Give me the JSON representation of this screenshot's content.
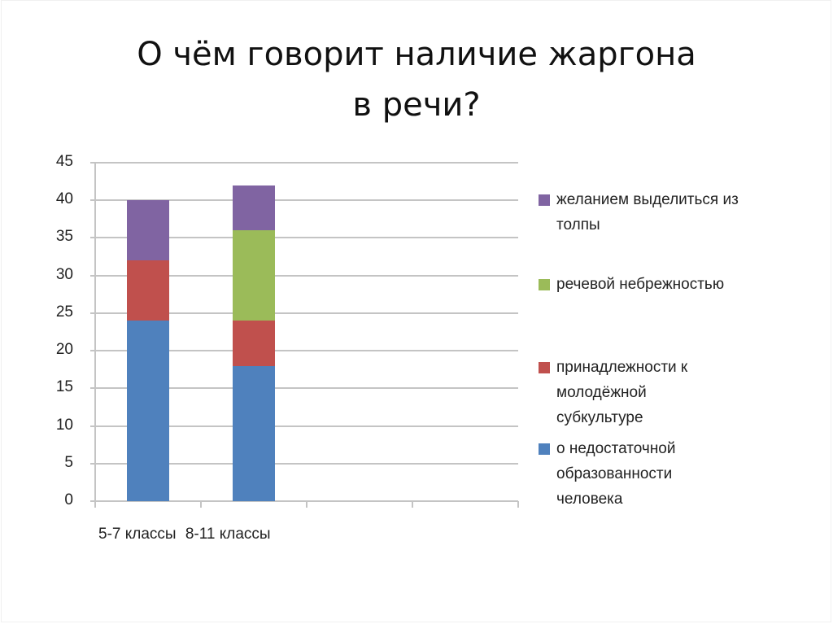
{
  "slide": {
    "title_lines": [
      "О чём говорит наличие жаргона",
      "в речи?"
    ]
  },
  "chart_data": {
    "type": "bar",
    "stacked": true,
    "title": "О чём говорит наличие жаргона в речи?",
    "xlabel": "",
    "ylabel": "",
    "ylim": [
      0,
      45
    ],
    "yticks": [
      0,
      5,
      10,
      15,
      20,
      25,
      30,
      35,
      40,
      45
    ],
    "grid": true,
    "legend_position": "right",
    "categories": [
      "5-7 классы",
      "8-11 классы"
    ],
    "x_label_text": "5-7 классы 8-11 классы",
    "series": [
      {
        "name": "о недостаточной образованности человека",
        "color": "#4f81bd",
        "values": [
          24,
          18
        ]
      },
      {
        "name": "принадлежности к молодёжной субкультуре",
        "color": "#c0504d",
        "values": [
          8,
          6
        ]
      },
      {
        "name": "речевой небрежностью",
        "color": "#9bbb59",
        "values": [
          0,
          12
        ]
      },
      {
        "name": "желанием выделиться из толпы",
        "color": "#8064a2",
        "values": [
          8,
          6
        ]
      }
    ]
  },
  "legend": {
    "items": [
      {
        "lines": [
          "желанием выделиться из",
          "толпы"
        ],
        "color": "#8064a2"
      },
      {
        "lines": [
          "речевой небрежностью"
        ],
        "color": "#9bbb59"
      },
      {
        "lines": [
          "принадлежности к",
          "молодёжной",
          "субкультуре"
        ],
        "color": "#c0504d"
      },
      {
        "lines": [
          "о недостаточной",
          "образованности",
          "человека"
        ],
        "color": "#4f81bd"
      }
    ]
  }
}
